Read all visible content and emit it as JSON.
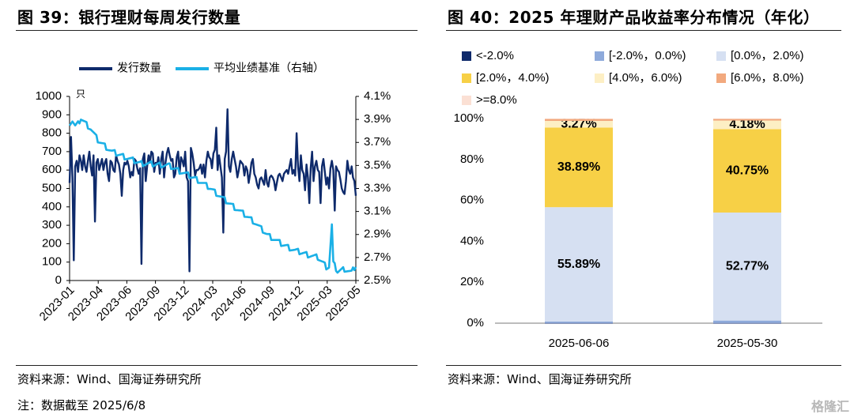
{
  "left_figure": {
    "title": "图 39：银行理财每周发行数量",
    "source": "资料来源：Wind、国海证券研究所",
    "note": "注：数据截至 2025/6/8"
  },
  "right_figure": {
    "title": "图 40：2025 年理财产品收益率分布情况（年化）",
    "source": "资料来源：Wind、国海证券研究所"
  },
  "watermark": "格隆汇",
  "colors": {
    "dark_navy": "#0e2a6b",
    "light_blue": "#1ab0e6"
  },
  "chart_data": [
    {
      "type": "line",
      "legend_position": "top",
      "left_unit": "只",
      "ylim_left": [
        0,
        1000
      ],
      "yticks_left": [
        "0",
        "100",
        "200",
        "300",
        "400",
        "500",
        "600",
        "700",
        "800",
        "900",
        "1000"
      ],
      "ylim_right": [
        2.5,
        4.1
      ],
      "yticks_right": [
        "2.5%",
        "2.7%",
        "2.9%",
        "3.1%",
        "3.3%",
        "3.5%",
        "3.7%",
        "3.9%",
        "4.1%"
      ],
      "xticks": [
        "2023-01",
        "2023-04",
        "2023-06",
        "2023-09",
        "2023-12",
        "2024-03",
        "2024-06",
        "2024-09",
        "2024-12",
        "2025-03",
        "2025-05"
      ],
      "series": [
        {
          "name": "发行数量",
          "axis": "left",
          "color": "#0e2a6b",
          "values": [
            530,
            780,
            560,
            110,
            620,
            650,
            590,
            680,
            650,
            600,
            680,
            620,
            590,
            650,
            700,
            620,
            570,
            680,
            320,
            640,
            660,
            600,
            630,
            660,
            600,
            640,
            660,
            580,
            540,
            650,
            640,
            600,
            590,
            680,
            650,
            630,
            580,
            460,
            600,
            640,
            630,
            650,
            620,
            560,
            590,
            570,
            660,
            650,
            610,
            580,
            610,
            90,
            660,
            690,
            540,
            620,
            680,
            640,
            700,
            690,
            590,
            640,
            630,
            670,
            580,
            660,
            700,
            560,
            640,
            690,
            720,
            680,
            650,
            660,
            560,
            580,
            670,
            700,
            580,
            670,
            650,
            620,
            700,
            560,
            540,
            50,
            720,
            690,
            640,
            570,
            600,
            600,
            610,
            630,
            580,
            630,
            560,
            650,
            700,
            670,
            660,
            610,
            690,
            710,
            830,
            600,
            680,
            620,
            560,
            260,
            660,
            700,
            930,
            620,
            590,
            660,
            700,
            660,
            620,
            560,
            600,
            650,
            640,
            630,
            570,
            620,
            600,
            530,
            580,
            640,
            660,
            580,
            560,
            520,
            500,
            550,
            560,
            540,
            520,
            600,
            530,
            510,
            560,
            570,
            560,
            540,
            490,
            530,
            570,
            580,
            560,
            540,
            580,
            590,
            600,
            580,
            620,
            660,
            580,
            600,
            570,
            800,
            620,
            540,
            680,
            600,
            580,
            490,
            630,
            560,
            420,
            610,
            700,
            540,
            620,
            650,
            600,
            590,
            420,
            620,
            660,
            590,
            520,
            560,
            500,
            610,
            650,
            600,
            380,
            620,
            600,
            590,
            550,
            500,
            480,
            470,
            540,
            650,
            600,
            580,
            620,
            560,
            540,
            460
          ],
          "trend_keypoints": [
            [
              0,
              520
            ],
            [
              1,
              780
            ],
            [
              4,
              100
            ],
            [
              10,
              640
            ],
            [
              20,
              660
            ],
            [
              30,
              630
            ],
            [
              40,
              650
            ],
            [
              51,
              90
            ],
            [
              60,
              650
            ],
            [
              70,
              700
            ],
            [
              85,
              50
            ],
            [
              100,
              680
            ],
            [
              109,
              260
            ],
            [
              112,
              930
            ],
            [
              125,
              560
            ],
            [
              140,
              500
            ],
            [
              155,
              600
            ],
            [
              162,
              800
            ],
            [
              175,
              420
            ],
            [
              190,
              380
            ],
            [
              201,
              460
            ]
          ]
        },
        {
          "name": "平均业绩基准（右轴）",
          "axis": "right",
          "color": "#1ab0e6",
          "keypoints": [
            [
              0,
              3.87
            ],
            [
              2,
              3.89
            ],
            [
              4,
              3.84
            ],
            [
              6,
              3.86
            ],
            [
              8,
              3.91
            ],
            [
              11,
              3.87
            ],
            [
              15,
              3.82
            ],
            [
              20,
              3.72
            ],
            [
              30,
              3.62
            ],
            [
              40,
              3.57
            ],
            [
              50,
              3.52
            ],
            [
              60,
              3.51
            ],
            [
              70,
              3.5
            ],
            [
              80,
              3.44
            ],
            [
              90,
              3.38
            ],
            [
              100,
              3.3
            ],
            [
              110,
              3.2
            ],
            [
              120,
              3.11
            ],
            [
              130,
              3.02
            ],
            [
              140,
              2.9
            ],
            [
              150,
              2.82
            ],
            [
              160,
              2.76
            ],
            [
              170,
              2.72
            ],
            [
              176,
              2.7
            ],
            [
              180,
              2.65
            ],
            [
              182,
              2.62
            ],
            [
              184,
              2.62
            ],
            [
              186,
              2.98
            ],
            [
              187,
              2.65
            ],
            [
              190,
              2.58
            ],
            [
              195,
              2.6
            ],
            [
              200,
              2.57
            ],
            [
              203,
              2.63
            ]
          ]
        }
      ]
    },
    {
      "type": "bar",
      "stacked": true,
      "categories": [
        "2025-06-06",
        "2025-05-30"
      ],
      "ylim": [
        0,
        100
      ],
      "yticks": [
        "0%",
        "20%",
        "40%",
        "60%",
        "80%",
        "100%"
      ],
      "legend_position": "top",
      "series": [
        {
          "name": "<-2.0%",
          "color": "#0e2a6b",
          "values": [
            0.05,
            0.05
          ]
        },
        {
          "name": "[-2.0%，0.0%)",
          "color": "#8eaadb",
          "values": [
            0.74,
            1.24
          ]
        },
        {
          "name": "[0.0%，2.0%)",
          "color": "#d6e0f2",
          "values": [
            55.89,
            52.77
          ],
          "label_text": [
            "55.89%",
            "52.77%"
          ]
        },
        {
          "name": "[2.0%，4.0%)",
          "color": "#f7d046",
          "values": [
            38.89,
            40.75
          ],
          "label_text": [
            "38.89%",
            "40.75%"
          ]
        },
        {
          "name": "[4.0%，6.0%)",
          "color": "#fdefc4",
          "values": [
            3.27,
            4.18
          ],
          "label_text": [
            "3.27%",
            "4.18%"
          ]
        },
        {
          "name": "[6.0%，8.0%)",
          "color": "#f2a97e",
          "values": [
            0.94,
            0.86
          ]
        },
        {
          "name": ">=8.0%",
          "color": "#fbe0d4",
          "values": [
            0.22,
            0.15
          ]
        }
      ]
    }
  ]
}
